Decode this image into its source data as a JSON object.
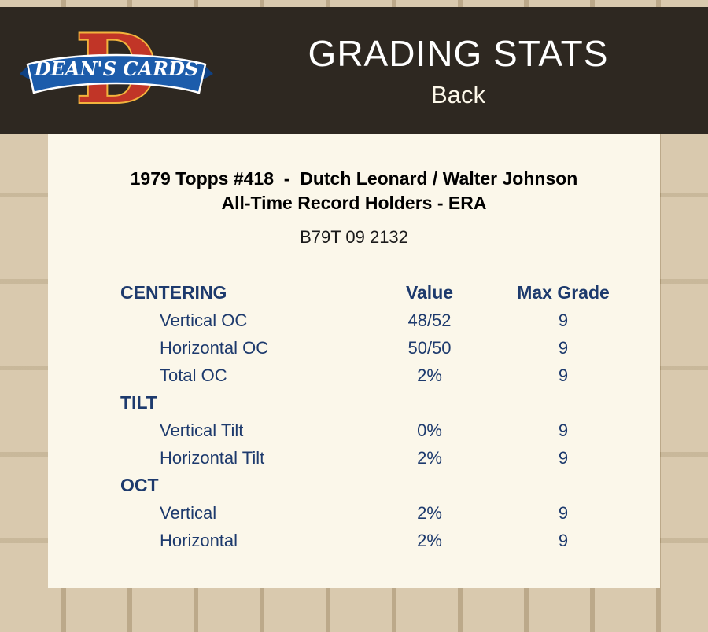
{
  "header": {
    "logo_text": "DEAN'S CARDS",
    "title": "GRADING STATS",
    "subtitle": "Back"
  },
  "card": {
    "title_line1": "1979 Topps #418  -  Dutch Leonard / Walter Johnson",
    "title_line2": "All-Time Record Holders - ERA",
    "code": "B79T 09 2132"
  },
  "table": {
    "columns": [
      "CENTERING",
      "Value",
      "Max Grade"
    ],
    "sections": [
      {
        "name": "",
        "rows": [
          {
            "label": "Vertical OC",
            "value": "48/52",
            "max_grade": "9"
          },
          {
            "label": "Horizontal OC",
            "value": "50/50",
            "max_grade": "9"
          },
          {
            "label": "Total OC",
            "value": "2%",
            "max_grade": "9"
          }
        ]
      },
      {
        "name": "TILT",
        "rows": [
          {
            "label": "Vertical Tilt",
            "value": "0%",
            "max_grade": "9"
          },
          {
            "label": "Horizontal Tilt",
            "value": "2%",
            "max_grade": "9"
          }
        ]
      },
      {
        "name": "OCT",
        "rows": [
          {
            "label": "Vertical",
            "value": "2%",
            "max_grade": "9"
          },
          {
            "label": "Horizontal",
            "value": "2%",
            "max_grade": "9"
          }
        ]
      }
    ]
  },
  "colors": {
    "page_bg": "#c9b593",
    "header_bg": "#2e2821",
    "panel_bg": "#fbf7ea",
    "table_text": "#1d3a6d",
    "banner_blue": "#1c5cab",
    "logo_red": "#c13527",
    "logo_gold": "#f2b33d"
  }
}
